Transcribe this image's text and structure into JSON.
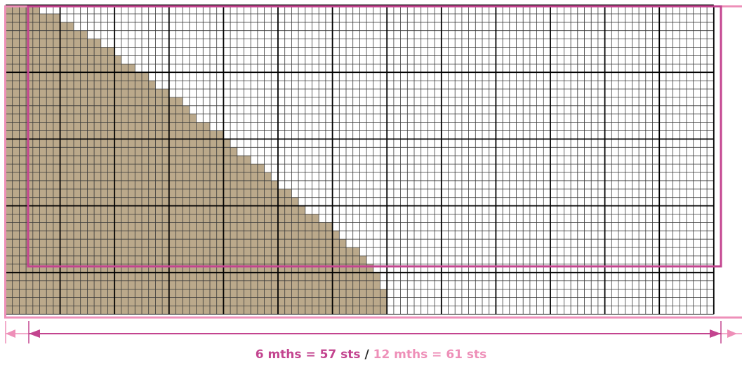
{
  "colors": {
    "shaded_fill": "#bba98b",
    "grid_fine": "#3a3a3a",
    "grid_bold": "#000000",
    "size_small": "#c3448f",
    "size_large": "#ee8fb8",
    "background": "#ffffff"
  },
  "chart_data": {
    "type": "chart-grid",
    "grid": {
      "cols": 104,
      "rows": 37,
      "major_every": 8
    },
    "shaded_region": {
      "description": "stepped triangular shape of knitted stitches",
      "row_starts": [
        0,
        0,
        0,
        0,
        0,
        0,
        0,
        0,
        0,
        0,
        0,
        0,
        0,
        0,
        0,
        0,
        0,
        0,
        0,
        0,
        0,
        0,
        0,
        0,
        0,
        0,
        0,
        0,
        0,
        0,
        0,
        0,
        0,
        0,
        0,
        0,
        0
      ],
      "row_ends": [
        5,
        8,
        10,
        12,
        14,
        16,
        17,
        19,
        21,
        22,
        24,
        26,
        27,
        28,
        30,
        32,
        33,
        34,
        36,
        38,
        39,
        40,
        42,
        43,
        44,
        46,
        48,
        49,
        50,
        52,
        53,
        54,
        55,
        55,
        56,
        56,
        56
      ]
    },
    "sizes": [
      {
        "label": "6 mths = 57 sts",
        "start_col": 3,
        "end_col": 104
      },
      {
        "label": "12 mths = 61 sts",
        "start_col": 0,
        "end_col": 108
      }
    ]
  },
  "caption": {
    "small": "6 mths = 57 sts",
    "separator": " / ",
    "large": "12 mths = 61 sts"
  }
}
